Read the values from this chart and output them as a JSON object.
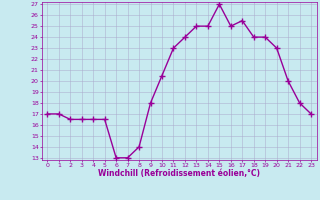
{
  "x": [
    0,
    1,
    2,
    3,
    4,
    5,
    6,
    7,
    8,
    9,
    10,
    11,
    12,
    13,
    14,
    15,
    16,
    17,
    18,
    19,
    20,
    21,
    22,
    23
  ],
  "y": [
    17,
    17,
    16.5,
    16.5,
    16.5,
    16.5,
    13,
    13,
    14,
    18,
    20.5,
    23,
    24,
    25,
    25,
    27,
    25,
    25.5,
    24,
    24,
    23,
    20,
    18,
    17
  ],
  "line_color": "#990099",
  "marker": "s",
  "marker_size": 2,
  "background_color": "#c8eaf0",
  "grid_color": "#aaaacc",
  "xlabel": "Windchill (Refroidissement éolien,°C)",
  "xlabel_color": "#990099",
  "tick_color": "#990099",
  "ylim": [
    13,
    27
  ],
  "xlim": [
    -0.5,
    23.5
  ],
  "yticks": [
    13,
    14,
    15,
    16,
    17,
    18,
    19,
    20,
    21,
    22,
    23,
    24,
    25,
    26,
    27
  ],
  "xticks": [
    0,
    1,
    2,
    3,
    4,
    5,
    6,
    7,
    8,
    9,
    10,
    11,
    12,
    13,
    14,
    15,
    16,
    17,
    18,
    19,
    20,
    21,
    22,
    23
  ]
}
